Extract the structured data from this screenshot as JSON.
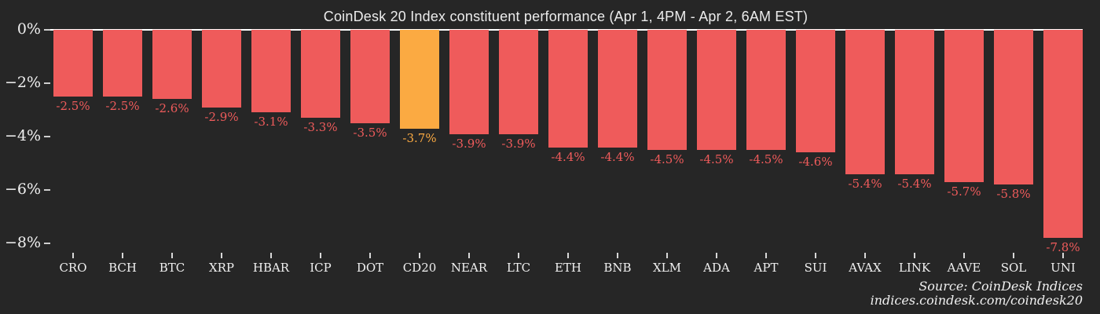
{
  "title": "CoinDesk 20 Index constituent performance (Apr 1, 4PM - Apr 2, 6AM EST)",
  "source_line1": "Source: CoinDesk Indices",
  "source_line2": "indices.coindesk.com/coindesk20",
  "colors": {
    "background": "#262626",
    "bar": "#ef5b5b",
    "highlight": "#fbaa42",
    "axis_text": "#f0f0f0",
    "zero_line": "#ffffff"
  },
  "y_axis": {
    "ticks": [
      {
        "label": "0%",
        "value": 0
      },
      {
        "label": "−2%",
        "value": -2
      },
      {
        "label": "−4%",
        "value": -4
      },
      {
        "label": "−6%",
        "value": -6
      },
      {
        "label": "−8%",
        "value": -8
      }
    ]
  },
  "chart_data": {
    "type": "bar",
    "title": "CoinDesk 20 Index constituent performance (Apr 1, 4PM - Apr 2, 6AM EST)",
    "xlabel": "",
    "ylabel": "",
    "ylim": [
      -8.6,
      0
    ],
    "grid": false,
    "legend": "none",
    "highlight_index": 7,
    "highlight_category": "CD20",
    "categories": [
      "CRO",
      "BCH",
      "BTC",
      "XRP",
      "HBAR",
      "ICP",
      "DOT",
      "CD20",
      "NEAR",
      "LTC",
      "ETH",
      "BNB",
      "XLM",
      "ADA",
      "APT",
      "SUI",
      "AVAX",
      "LINK",
      "AAVE",
      "SOL",
      "UNI"
    ],
    "values": [
      -2.5,
      -2.5,
      -2.6,
      -2.9,
      -3.1,
      -3.3,
      -3.5,
      -3.7,
      -3.9,
      -3.9,
      -4.4,
      -4.4,
      -4.5,
      -4.5,
      -4.5,
      -4.6,
      -5.4,
      -5.4,
      -5.7,
      -5.8,
      -7.8
    ],
    "value_labels": [
      "-2.5%",
      "-2.5%",
      "-2.6%",
      "-2.9%",
      "-3.1%",
      "-3.3%",
      "-3.5%",
      "-3.7%",
      "-3.9%",
      "-3.9%",
      "-4.4%",
      "-4.4%",
      "-4.5%",
      "-4.5%",
      "-4.5%",
      "-4.6%",
      "-5.4%",
      "-5.4%",
      "-5.7%",
      "-5.8%",
      "-7.8%"
    ]
  }
}
